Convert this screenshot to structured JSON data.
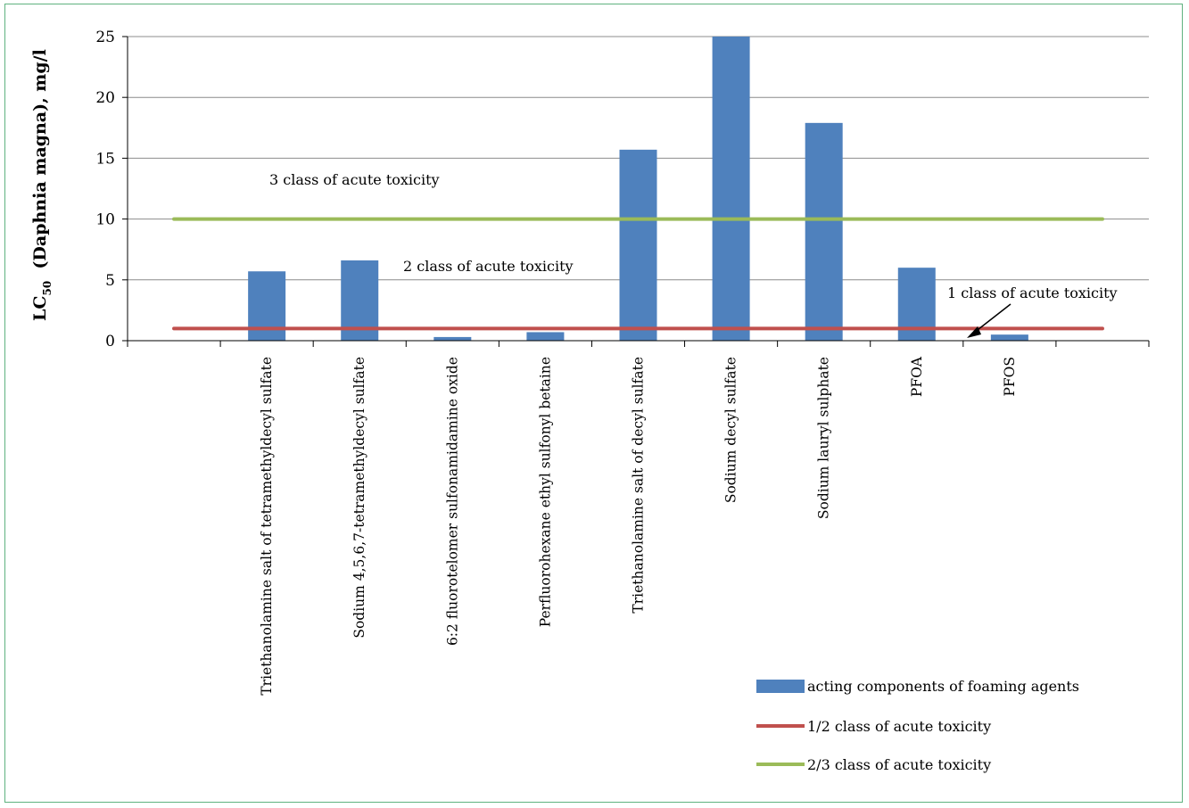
{
  "chart_data": {
    "type": "bar",
    "ylabel": {
      "main": "LC",
      "sub": "50",
      "rest": "  (Daphnia magna), mg/l"
    },
    "xlabel": "",
    "ylim": [
      0,
      25
    ],
    "yticks": [
      0,
      5,
      10,
      15,
      20,
      25
    ],
    "grid": true,
    "categories": [
      "",
      "Triethanolamine salt of tetramethyldecyl sulfate",
      "Sodium 4,5,6,7-tetramethyldecyl sulfate",
      "6:2 fluorotelomer sulfonamidamine oxide",
      "Perfluorohexane ethyl sulfonyl betaine",
      "Triethanolamine salt of decyl sulfate",
      "Sodium decyl sulfate",
      "Sodium lauryl sulphate",
      "PFOA",
      "PFOS",
      ""
    ],
    "series": [
      {
        "name": "acting components of foaming agents",
        "kind": "bar",
        "color": "#4f81bd",
        "values": [
          null,
          5.7,
          6.6,
          0.3,
          0.7,
          15.7,
          25.0,
          17.9,
          6.0,
          0.5,
          null
        ]
      },
      {
        "name": "1/2 class of acute toxicity",
        "kind": "line",
        "color": "#c0504d",
        "values": [
          1,
          1,
          1,
          1,
          1,
          1,
          1,
          1,
          1,
          1,
          1
        ]
      },
      {
        "name": "2/3 class of acute toxicity",
        "kind": "line",
        "color": "#9bbb59",
        "values": [
          10,
          10,
          10,
          10,
          10,
          10,
          10,
          10,
          10,
          10,
          10
        ]
      }
    ],
    "annotations": [
      "3 class of acute toxicity",
      "2 class of acute toxicity",
      "1 class of acute toxicity"
    ],
    "legend_position": "bottom-right"
  }
}
